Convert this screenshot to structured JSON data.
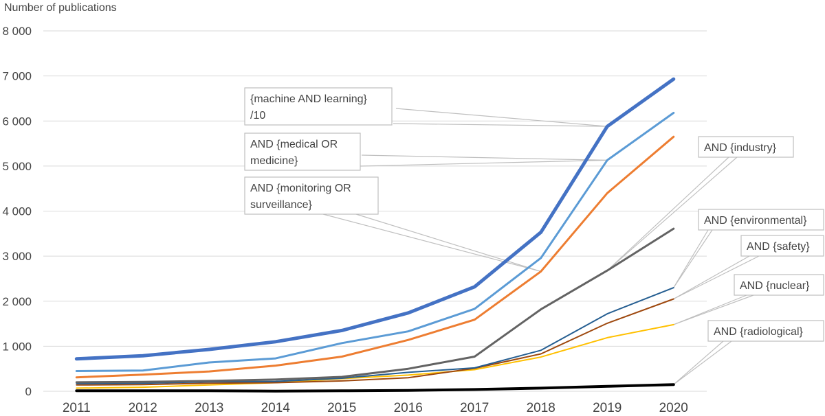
{
  "chart_data": {
    "type": "line",
    "title": "",
    "ylabel": "Number of publications",
    "xlabel": "",
    "x": [
      2011,
      2012,
      2013,
      2014,
      2015,
      2016,
      2017,
      2018,
      2019,
      2020
    ],
    "ylim": [
      0,
      8000
    ],
    "yticks": [
      0,
      1000,
      2000,
      3000,
      4000,
      5000,
      6000,
      7000,
      8000
    ],
    "ytick_labels": [
      "0",
      "1 000",
      "2 000",
      "3 000",
      "4 000",
      "5 000",
      "6 000",
      "7 000",
      "8 000"
    ],
    "grid": true,
    "series": [
      {
        "name": "{machine AND learning} /10",
        "label_lines": [
          "{machine AND learning}",
          "/10"
        ],
        "color": "#4472c4",
        "width": 5,
        "values": [
          720,
          790,
          930,
          1100,
          1350,
          1740,
          2320,
          3530,
          5880,
          6930
        ]
      },
      {
        "name": "AND {medical OR medicine}",
        "label_lines": [
          "AND {medical OR",
          "medicine}"
        ],
        "color": "#5b9bd5",
        "width": 3,
        "values": [
          450,
          460,
          640,
          730,
          1070,
          1330,
          1830,
          2960,
          5130,
          6180
        ]
      },
      {
        "name": "AND {monitoring OR surveillance}",
        "label_lines": [
          "AND {monitoring OR",
          "surveillance}"
        ],
        "color": "#ed7d31",
        "width": 3,
        "values": [
          310,
          370,
          440,
          570,
          770,
          1140,
          1590,
          2660,
          4400,
          5650
        ]
      },
      {
        "name": "AND {industry}",
        "label_lines": [
          "AND {industry}"
        ],
        "color": "#636363",
        "width": 3,
        "values": [
          200,
          210,
          230,
          260,
          320,
          500,
          770,
          1820,
          2680,
          3610
        ]
      },
      {
        "name": "AND {environmental}",
        "label_lines": [
          "AND {environmental}"
        ],
        "color": "#255e91",
        "width": 2,
        "values": [
          170,
          180,
          210,
          220,
          290,
          420,
          520,
          910,
          1720,
          2300
        ]
      },
      {
        "name": "AND {safety}",
        "label_lines": [
          "AND {safety}"
        ],
        "color": "#9e480e",
        "width": 2,
        "values": [
          140,
          150,
          180,
          190,
          230,
          300,
          510,
          830,
          1510,
          2050
        ]
      },
      {
        "name": "AND {nuclear}",
        "label_lines": [
          "AND {nuclear}"
        ],
        "color": "#ffc000",
        "width": 2,
        "values": [
          70,
          90,
          140,
          190,
          280,
          360,
          480,
          760,
          1190,
          1480
        ]
      },
      {
        "name": "AND {radiological}",
        "label_lines": [
          "AND {radiological}"
        ],
        "color": "#000000",
        "width": 4,
        "values": [
          10,
          10,
          10,
          5,
          10,
          20,
          40,
          70,
          110,
          150
        ]
      }
    ]
  }
}
